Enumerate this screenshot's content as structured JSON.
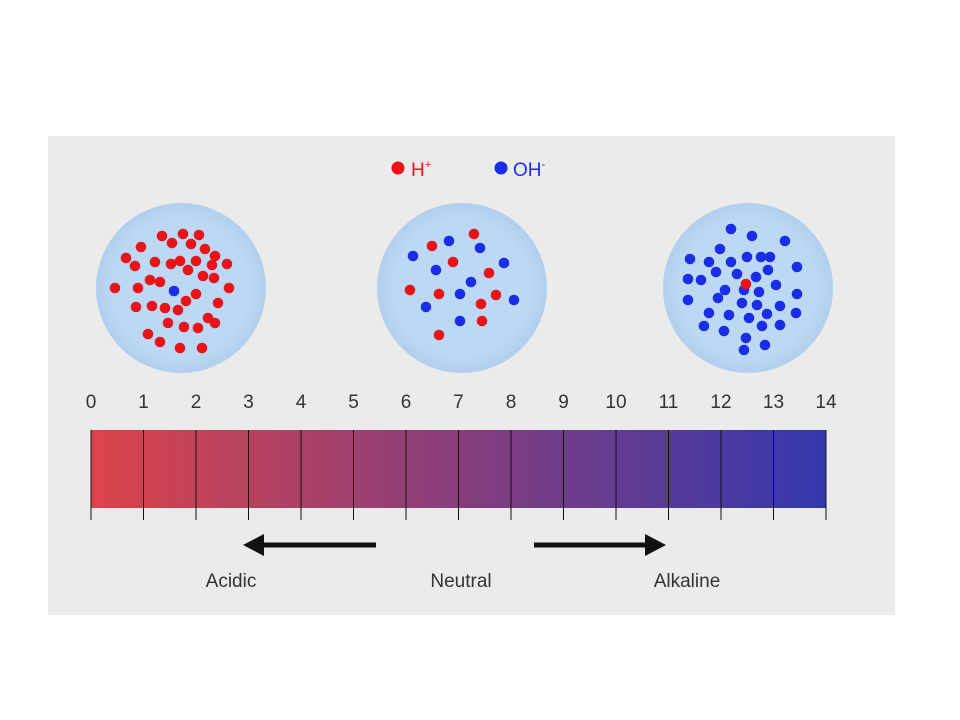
{
  "legend": {
    "items": [
      {
        "label_main": "H",
        "label_sup": "+",
        "color": "#e8141a"
      },
      {
        "label_main": "OH",
        "label_sup": "-",
        "color": "#1a2ee8"
      }
    ]
  },
  "scale": {
    "ticks": [
      "0",
      "1",
      "2",
      "3",
      "4",
      "5",
      "6",
      "7",
      "8",
      "9",
      "10",
      "11",
      "12",
      "13",
      "14"
    ],
    "gradient_start": "#dc4449",
    "gradient_end": "#3238ae"
  },
  "labels": {
    "acidic": "Acidic",
    "neutral": "Neutral",
    "alkaline": "Alkaline"
  },
  "circles_fill": "#bcd8f3"
}
